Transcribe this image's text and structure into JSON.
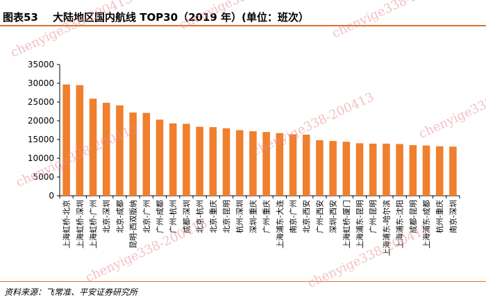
{
  "header": {
    "figure_label": "图表53",
    "title": "大陆地区国内航线 TOP30（2019 年）(单位：班次）"
  },
  "footer": {
    "source": "资料来源：飞常准、平安证券研究所"
  },
  "watermark": {
    "text": "chenyige338-200413"
  },
  "colors": {
    "bar": "#f07f2e",
    "accent": "#e07020"
  },
  "chart_data": {
    "type": "bar",
    "title": "大陆地区国内航线 TOP30（2019 年）(单位：班次）",
    "xlabel": "",
    "ylabel": "",
    "ylim": [
      0,
      35000
    ],
    "yticks": [
      0,
      5000,
      10000,
      15000,
      20000,
      25000,
      30000,
      35000
    ],
    "grid": false,
    "legend": "none",
    "categories": [
      "上海虹桥-北京",
      "上海虹桥-深圳",
      "上海虹桥-广州",
      "北京-深圳",
      "北京-成都",
      "昆明-西双版纳",
      "北京-广州",
      "广州-成都",
      "广州-杭州",
      "成都-深圳",
      "北京-杭州",
      "北京-重庆",
      "北京-昆明",
      "杭州-深圳",
      "深圳-重庆",
      "广州-重庆",
      "上海浦东-大连",
      "南京-广州",
      "北京-西安",
      "广州-西安",
      "深圳-西安",
      "上海虹桥-厦门",
      "上海浦东-昆明",
      "广州-昆明",
      "上海浦东-哈尔滨",
      "上海浦东-沈阳",
      "成都-昆明",
      "上海浦东-成都",
      "杭州-重庆",
      "南京-深圳"
    ],
    "values": [
      29700,
      29500,
      25900,
      24800,
      24100,
      22200,
      22100,
      20300,
      19300,
      19200,
      18400,
      18300,
      18000,
      17500,
      17200,
      17000,
      16700,
      16400,
      16300,
      14800,
      14600,
      14400,
      14000,
      13900,
      13900,
      13800,
      13500,
      13400,
      13200,
      13100
    ]
  }
}
